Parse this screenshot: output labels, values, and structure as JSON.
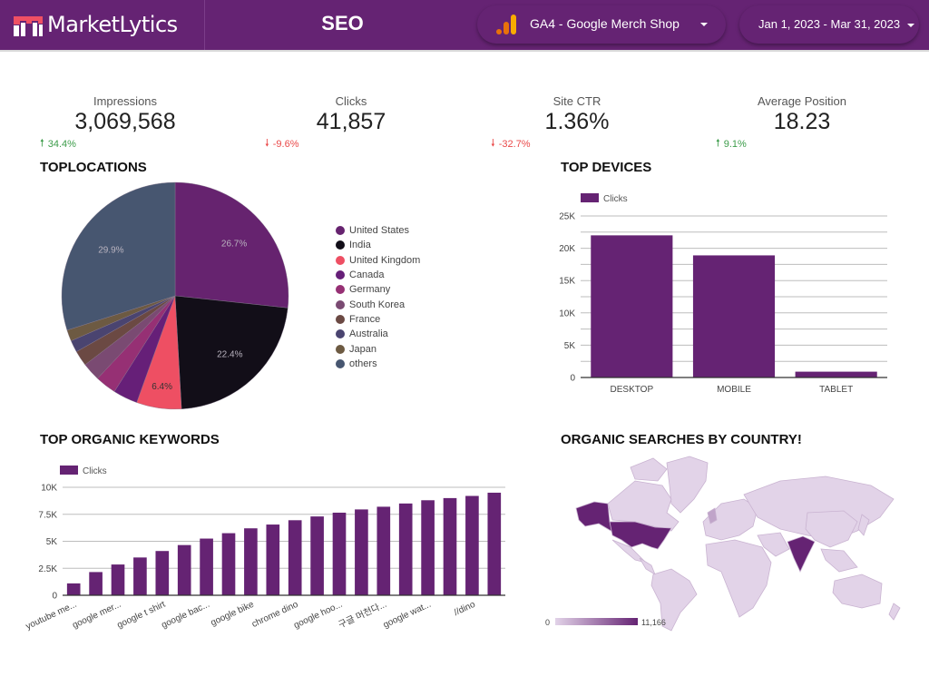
{
  "header": {
    "brand": "MarketLytics",
    "title": "SEO",
    "data_source": "GA4 - Google Merch Shop",
    "date_range": "Jan 1, 2023 - Mar 31, 2023",
    "brand_color": "#652373",
    "icons": {
      "logo": "marketlytics-logo",
      "source": "google-analytics-icon",
      "dropdown": "caret-down-icon"
    }
  },
  "kpis": [
    {
      "label": "Impressions",
      "value": "3,069,568",
      "delta": "34.4%",
      "direction": "up"
    },
    {
      "label": "Clicks",
      "value": "41,857",
      "delta": "-9.6%",
      "direction": "down"
    },
    {
      "label": "Site CTR",
      "value": "1.36%",
      "delta": "-32.7%",
      "direction": "down"
    },
    {
      "label": "Average Position",
      "value": "18.23",
      "delta": "9.1%",
      "direction": "up"
    }
  ],
  "colors": {
    "up": "#3c9c4a",
    "down": "#ea4a4a",
    "bar": "#652373",
    "grid": "#bdbdbd"
  },
  "chart_data": [
    {
      "type": "pie",
      "title": "TOPLOCATIONS",
      "categories": [
        "United States",
        "India",
        "United Kingdom",
        "Canada",
        "Germany",
        "South Korea",
        "France",
        "Australia",
        "Japan",
        "others"
      ],
      "values": [
        26.7,
        22.4,
        6.4,
        3.5,
        3.0,
        2.6,
        2.2,
        1.7,
        1.6,
        29.9
      ],
      "data_labels": [
        "26.7%",
        "22.4%",
        "6.4%",
        "",
        "",
        "",
        "",
        "",
        "",
        "29.9%"
      ],
      "colors": [
        "#66236f",
        "#120e18",
        "#ee4f63",
        "#661f78",
        "#963074",
        "#7a4a72",
        "#6b4943",
        "#4a4470",
        "#6d5a42",
        "#475670"
      ],
      "legend": "right"
    },
    {
      "type": "bar",
      "title": "TOP DEVICES",
      "categories": [
        "DESKTOP",
        "MOBILE",
        "TABLET"
      ],
      "series": [
        {
          "name": "Clicks",
          "values": [
            22000,
            18900,
            900
          ]
        }
      ],
      "ylim": [
        0,
        25000
      ],
      "yticks": [
        0,
        5000,
        10000,
        15000,
        20000,
        25000
      ],
      "ytick_labels": [
        "0",
        "5K",
        "10K",
        "15K",
        "20K",
        "25K"
      ],
      "minor_grid_step": 2500,
      "legend": "top-left",
      "grid": true
    },
    {
      "type": "bar",
      "title": "TOP ORGANIC KEYWORDS",
      "xtick_labels": [
        "youtube me...",
        "google mer...",
        "google t shirt",
        "google bac...",
        "google bike",
        "chrome dino",
        "google hoo...",
        "구글 머천다...",
        "google wat...",
        "//dino"
      ],
      "series": [
        {
          "name": "Clicks",
          "values": [
            1100,
            2150,
            2850,
            3500,
            4100,
            4650,
            5250,
            5750,
            6200,
            6550,
            6950,
            7300,
            7650,
            7950,
            8200,
            8500,
            8800,
            9000,
            9200,
            9500
          ]
        }
      ],
      "ylim": [
        0,
        10000
      ],
      "yticks": [
        0,
        2500,
        5000,
        7500,
        10000
      ],
      "ytick_labels": [
        "0",
        "2.5K",
        "5K",
        "7.5K",
        "10K"
      ],
      "legend": "top-left",
      "grid": true
    },
    {
      "type": "heatmap",
      "title": "ORGANIC SEARCHES BY COUNTRY!",
      "scale_min": "0",
      "scale_max": "11,166",
      "highlighted": [
        "United States",
        "India"
      ],
      "colors": {
        "low": "#e2d3e8",
        "high": "#652373",
        "border": "#c9b3d1"
      }
    }
  ]
}
